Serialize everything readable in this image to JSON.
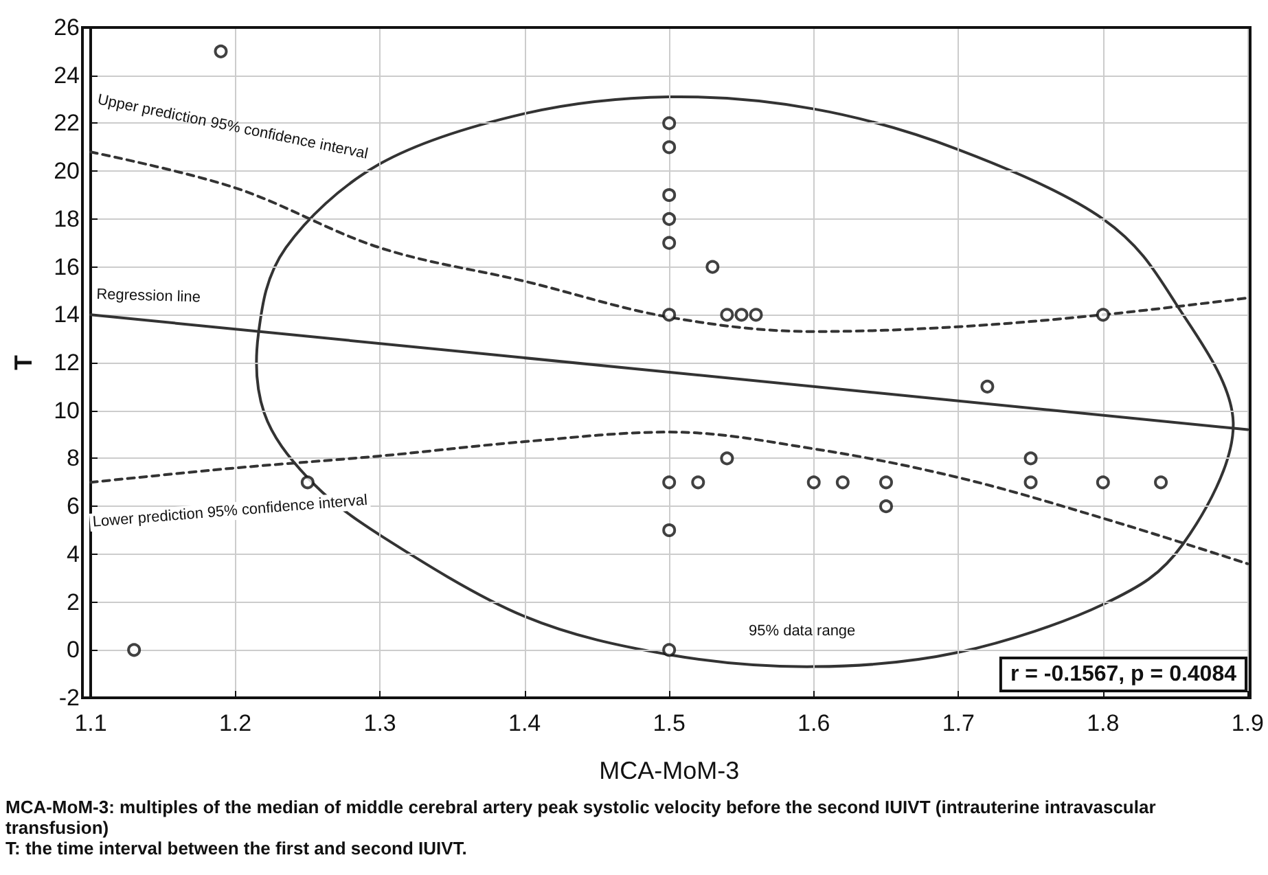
{
  "chart_data": {
    "type": "scatter",
    "xlabel": "MCA-MoM-3",
    "ylabel": "T",
    "xlim": [
      1.1,
      1.9
    ],
    "xticks": [
      1.1,
      1.2,
      1.3,
      1.4,
      1.5,
      1.6,
      1.7,
      1.8,
      1.9
    ],
    "ylim": [
      -2,
      26
    ],
    "yticks": [
      -2,
      0,
      2,
      4,
      6,
      8,
      10,
      12,
      14,
      16,
      18,
      20,
      22,
      24,
      26
    ],
    "grid": true,
    "series": [
      {
        "color": "#111111",
        "marker": "circle",
        "x": [
          1.19,
          1.13,
          1.25,
          1.5,
          1.5,
          1.5,
          1.5,
          1.5,
          1.5,
          1.5,
          1.5,
          1.5,
          1.53,
          1.54,
          1.55,
          1.56,
          1.54,
          1.52,
          1.6,
          1.62,
          1.65,
          1.65,
          1.72,
          1.75,
          1.75,
          1.8,
          1.8,
          1.84
        ],
        "values": [
          25,
          0,
          7,
          22,
          21,
          19,
          18,
          17,
          14,
          7,
          5,
          0,
          16,
          14,
          14,
          14,
          8,
          7,
          7,
          7,
          7,
          6,
          11,
          8,
          7,
          14,
          7,
          7
        ]
      },
      {
        "type": "line",
        "color": "#333333",
        "marker": "none",
        "line_style": "solid",
        "x": [
          1.1,
          1.9
        ],
        "values": [
          14,
          9.2
        ]
      },
      {
        "type": "line",
        "color": "#333333",
        "marker": "none",
        "line_style": "dashed",
        "x": [
          1.1,
          1.2,
          1.3,
          1.4,
          1.5,
          1.6,
          1.7,
          1.8,
          1.9
        ],
        "values": [
          20.8,
          19.3,
          16.8,
          15.4,
          13.9,
          13.3,
          13.5,
          14,
          14.7
        ]
      },
      {
        "type": "line",
        "color": "#333333",
        "marker": "none",
        "line_style": "dashed",
        "x": [
          1.1,
          1.2,
          1.3,
          1.4,
          1.5,
          1.6,
          1.7,
          1.8,
          1.9
        ],
        "values": [
          7,
          7.6,
          8.1,
          8.7,
          9.1,
          8.4,
          7.2,
          5.5,
          3.6
        ]
      }
    ],
    "annotations": [
      "Upper prediction 95% confidence interval",
      "Regression line",
      "Lower prediction 95% confidence interval",
      "95% data range",
      "r = -0.1567, p = 0.4084",
      "MCA-MoM-3: multiples of the median of middle cerebral artery peak systolic velocity before the second IUIVT (intrauterine intravascular transfusion)",
      "T: the time interval between the first and second IUIVT."
    ]
  }
}
